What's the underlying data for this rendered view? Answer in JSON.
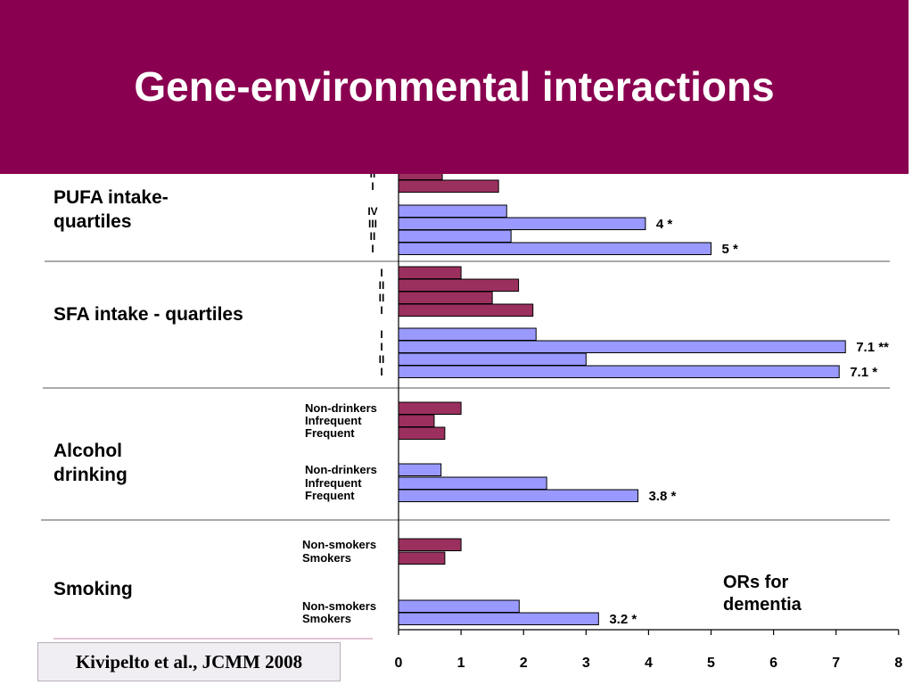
{
  "title": "Gene-environmental interactions",
  "citation": "Kivipelto et al., JCMM 2008",
  "note": [
    "ORs for",
    "dementia"
  ],
  "colors": {
    "header": "#8a0050",
    "series_dark": "#9b305e",
    "series_light": "#9999ff"
  },
  "chart_data": {
    "type": "bar",
    "orientation": "horizontal",
    "xlim": [
      0,
      8
    ],
    "x_ticks": [
      "0",
      "1",
      "2",
      "3",
      "4",
      "5",
      "6",
      "7",
      "8"
    ],
    "groups": [
      {
        "label": "PUFA intake-quartiles",
        "label_lines": [
          "PUFA intake-",
          "quartiles"
        ],
        "bars": [
          {
            "label": "II",
            "value": 0.7,
            "color": "dark",
            "annotation": ""
          },
          {
            "label": "I",
            "value": 1.6,
            "color": "dark",
            "annotation": ""
          },
          {
            "label": "IV",
            "value": 1.73,
            "color": "light",
            "annotation": ""
          },
          {
            "label": "III",
            "value": 3.95,
            "color": "light",
            "annotation": "4 *"
          },
          {
            "label": "II",
            "value": 1.8,
            "color": "light",
            "annotation": ""
          },
          {
            "label": "I",
            "value": 5.0,
            "color": "light",
            "annotation": "5 *"
          }
        ]
      },
      {
        "label": "SFA intake - quartiles",
        "label_lines": [
          "SFA intake - quartiles"
        ],
        "bars": [
          {
            "label": "I",
            "value": 1.0,
            "color": "dark",
            "annotation": ""
          },
          {
            "label": "II",
            "value": 1.92,
            "color": "dark",
            "annotation": ""
          },
          {
            "label": "II",
            "value": 1.5,
            "color": "dark",
            "annotation": ""
          },
          {
            "label": "I",
            "value": 2.15,
            "color": "dark",
            "annotation": ""
          },
          {
            "label": "I",
            "value": 2.2,
            "color": "light",
            "annotation": ""
          },
          {
            "label": "I",
            "value": 7.15,
            "color": "light",
            "annotation": "7.1 **"
          },
          {
            "label": "II",
            "value": 3.0,
            "color": "light",
            "annotation": ""
          },
          {
            "label": "I",
            "value": 7.05,
            "color": "light",
            "annotation": "7.1 *"
          }
        ]
      },
      {
        "label": "Alcohol drinking",
        "label_lines": [
          "Alcohol",
          "drinking"
        ],
        "bars": [
          {
            "label": "Non-drinkers",
            "value": 1.0,
            "color": "dark",
            "annotation": ""
          },
          {
            "label": "Infrequent",
            "value": 0.57,
            "color": "dark",
            "annotation": ""
          },
          {
            "label": "Frequent",
            "value": 0.74,
            "color": "dark",
            "annotation": ""
          },
          {
            "label": "Non-drinkers",
            "value": 0.68,
            "color": "light",
            "annotation": ""
          },
          {
            "label": "Infrequent",
            "value": 2.37,
            "color": "light",
            "annotation": ""
          },
          {
            "label": "Frequent",
            "value": 3.83,
            "color": "light",
            "annotation": "3.8 *"
          }
        ]
      },
      {
        "label": "Smoking",
        "label_lines": [
          "Smoking"
        ],
        "bars": [
          {
            "label": "Non-smokers",
            "value": 1.0,
            "color": "dark",
            "annotation": ""
          },
          {
            "label": "Smokers",
            "value": 0.74,
            "color": "dark",
            "annotation": ""
          },
          {
            "label": "Non-smokers",
            "value": 1.93,
            "color": "light",
            "annotation": ""
          },
          {
            "label": "Smokers",
            "value": 3.2,
            "color": "light",
            "annotation": "3.2 *"
          }
        ]
      }
    ]
  }
}
